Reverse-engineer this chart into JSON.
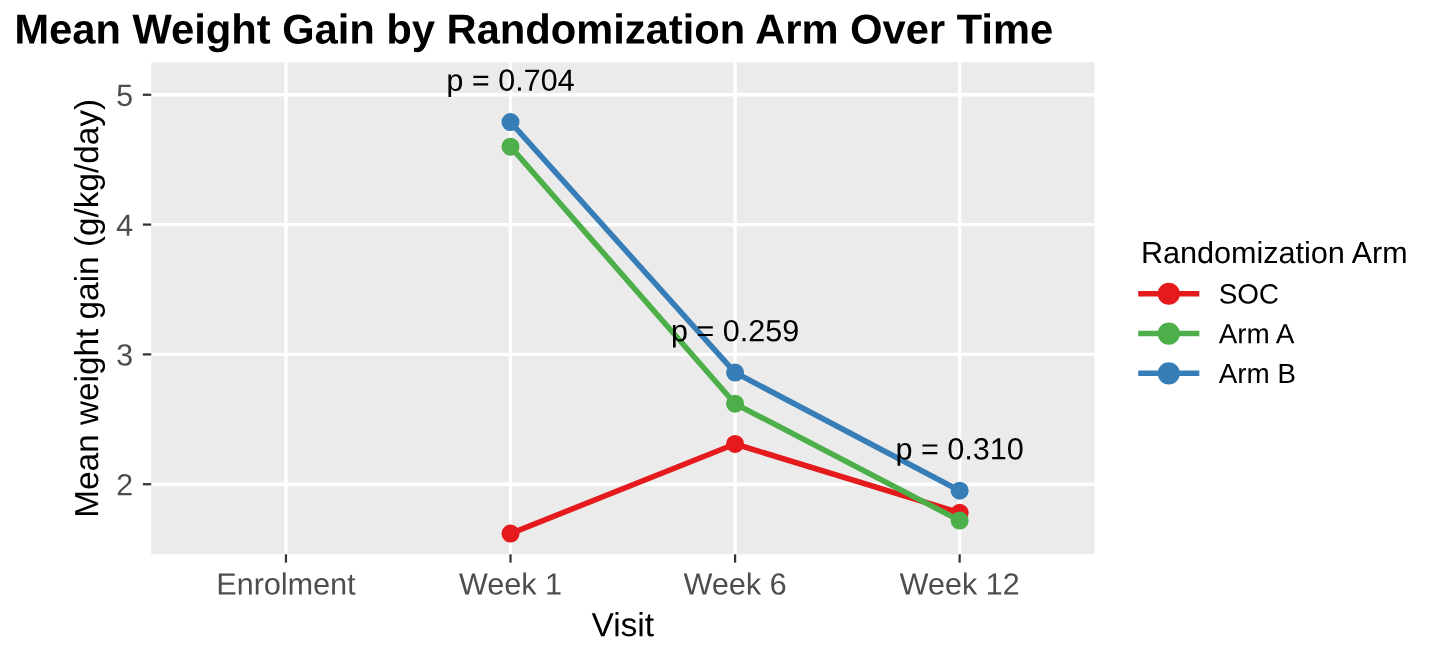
{
  "chart_data": {
    "type": "line",
    "title": "Mean Weight Gain by Randomization Arm Over Time",
    "xlabel": "Visit",
    "ylabel": "Mean weight gain (g/kg/day)",
    "legend_title": "Randomization Arm",
    "categories": [
      "Enrolment",
      "Week 1",
      "Week 6",
      "Week 12"
    ],
    "series": [
      {
        "name": "SOC",
        "color": "#e41a1c",
        "values": [
          null,
          1.62,
          2.31,
          1.78
        ]
      },
      {
        "name": "Arm A",
        "color": "#4daf4a",
        "values": [
          null,
          4.6,
          2.62,
          1.72
        ]
      },
      {
        "name": "Arm B",
        "color": "#377eb8",
        "values": [
          null,
          4.79,
          2.86,
          1.95
        ]
      }
    ],
    "ylim": [
      1.46,
      5.25
    ],
    "yticks": [
      2,
      3,
      4,
      5
    ],
    "grid": true,
    "legend": "right",
    "marker": "circle",
    "line_style": "solid",
    "annotations": [
      "p = 0.704",
      "p = 0.259",
      "p = 0.310"
    ]
  }
}
